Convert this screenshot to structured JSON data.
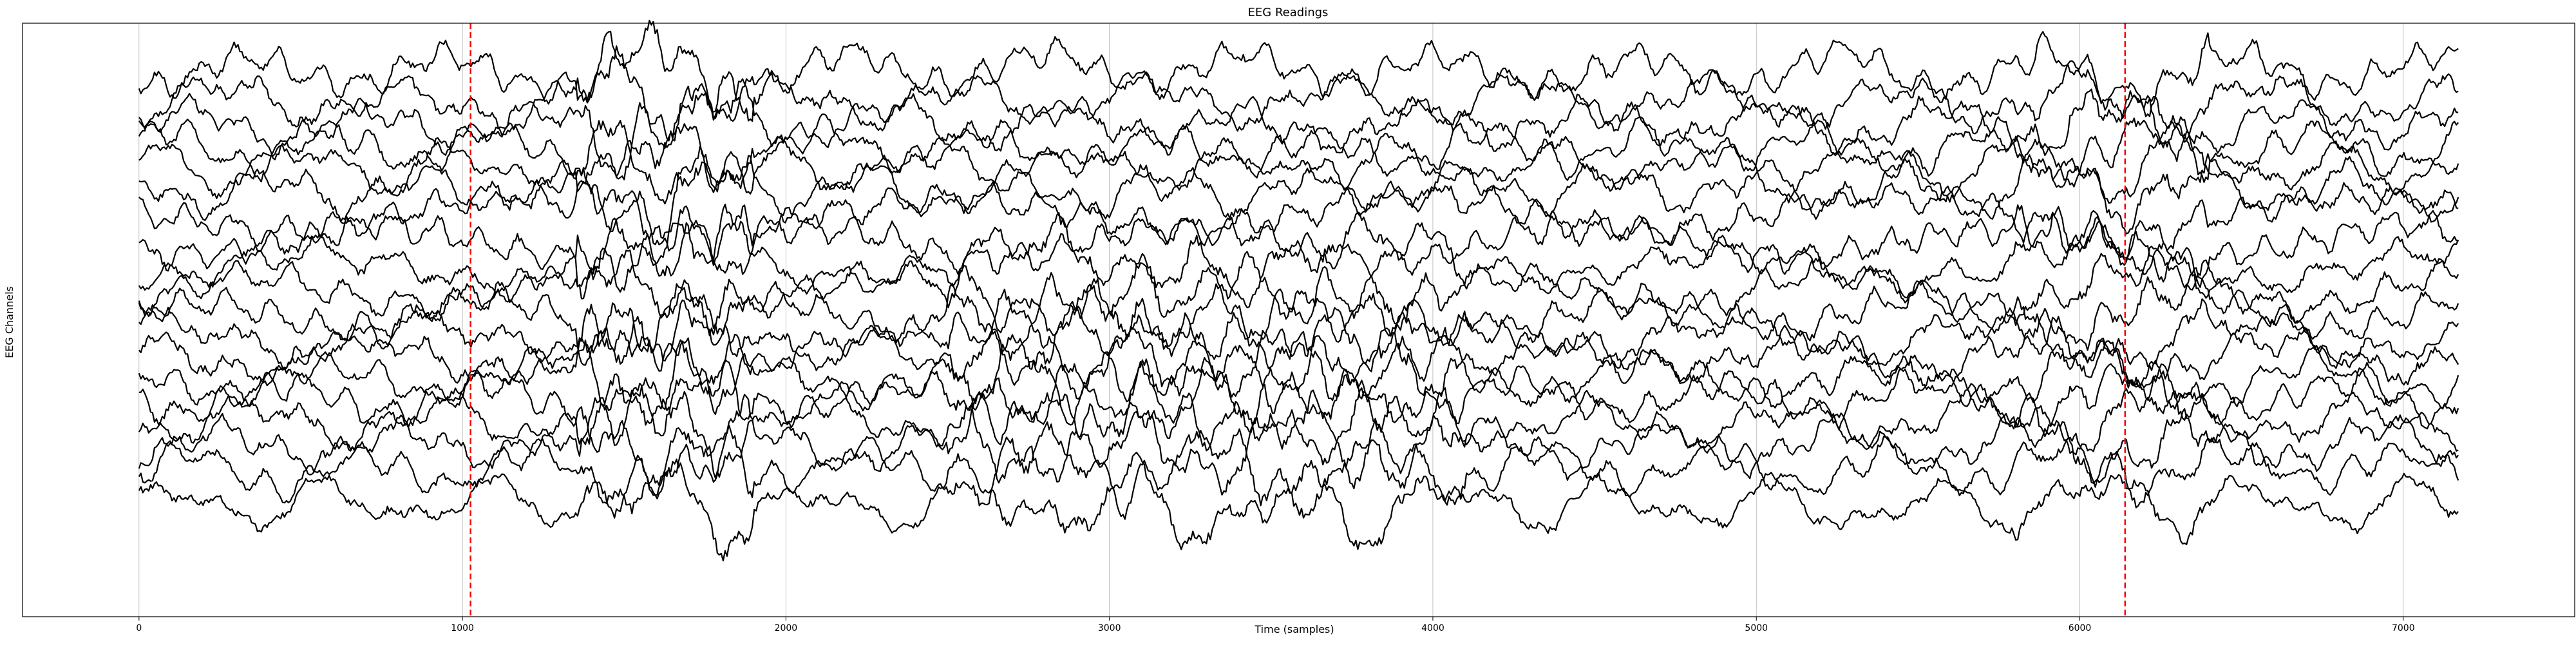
{
  "chart_data": {
    "type": "line",
    "title": "EEG Readings",
    "xlabel": "Time (samples)",
    "ylabel": "EEG Channels",
    "xlim": [
      -360,
      7530
    ],
    "x_ticks": [
      0,
      1000,
      2000,
      3000,
      4000,
      5000,
      6000,
      7000
    ],
    "x_tick_labels": [
      "0",
      "1000",
      "2000",
      "3000",
      "4000",
      "5000",
      "6000",
      "7000"
    ],
    "y_ticks_visible": false,
    "grid": "x-only",
    "legend": "none",
    "x_range": [
      0,
      7170
    ],
    "n_channels": 19,
    "series_color": "#000000",
    "marker_lines": [
      {
        "x": 1025,
        "color": "#ff0000",
        "style": "dashed"
      },
      {
        "x": 6140,
        "color": "#ff0000",
        "style": "dashed"
      }
    ],
    "channel_baselines": [
      0.92,
      0.87,
      0.83,
      0.79,
      0.76,
      0.72,
      0.68,
      0.63,
      0.59,
      0.55,
      0.51,
      0.47,
      0.44,
      0.4,
      0.37,
      0.33,
      0.29,
      0.25,
      0.19
    ],
    "approx_channel_amplitude": 0.03
  }
}
